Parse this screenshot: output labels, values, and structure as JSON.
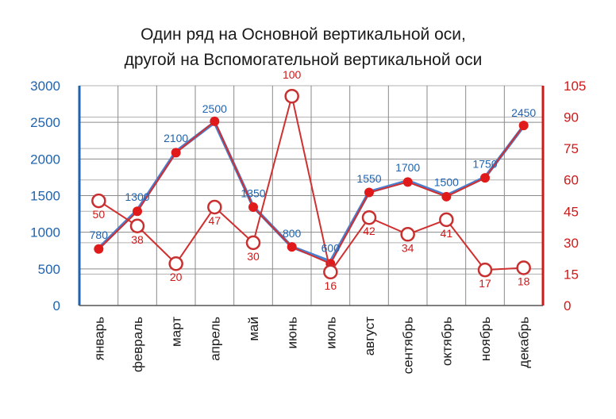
{
  "chart_data": {
    "type": "line",
    "title_lines": [
      "Один ряд на Основной вертикальной оси,",
      "другой на Вспомогательной вертикальной оси"
    ],
    "categories": [
      "январь",
      "февраль",
      "март",
      "апрель",
      "май",
      "июнь",
      "июль",
      "август",
      "сентябрь",
      "октябрь",
      "ноябрь",
      "декабрь"
    ],
    "primary_axis": {
      "ylim": [
        0,
        3000
      ],
      "ticks": [
        "0",
        "500",
        "1000",
        "1500",
        "2000",
        "2500",
        "3000"
      ],
      "color": "#1f63b0"
    },
    "secondary_axis": {
      "ylim": [
        0,
        105
      ],
      "ticks": [
        "0",
        "15",
        "30",
        "45",
        "60",
        "75",
        "90",
        "105"
      ],
      "color": "#d01818"
    },
    "series": [
      {
        "axis": "primary",
        "color": "#4a7fd0",
        "marker": "none",
        "values": [
          780,
          1300,
          2100,
          2500,
          1350,
          800,
          600,
          1550,
          1700,
          1500,
          1750,
          2450
        ],
        "labels": [
          "780",
          "1300",
          "2100",
          "2500",
          "1350",
          "800",
          "600",
          "1550",
          "1700",
          "1500",
          "1750",
          "2450"
        ]
      },
      {
        "axis": "secondary",
        "color": "#d03030",
        "marker": "filled",
        "values": [
          27,
          45,
          73,
          88,
          47,
          28,
          20,
          54,
          59,
          52,
          61,
          86
        ],
        "labels": []
      },
      {
        "axis": "secondary",
        "color": "#d03030",
        "marker": "hollow",
        "values": [
          50,
          38,
          20,
          47,
          30,
          100,
          16,
          42,
          34,
          41,
          17,
          18
        ],
        "labels": [
          "50",
          "38",
          "20",
          "47",
          "30",
          "100",
          "16",
          "42",
          "34",
          "41",
          "17",
          "18"
        ]
      }
    ],
    "grid": true
  }
}
